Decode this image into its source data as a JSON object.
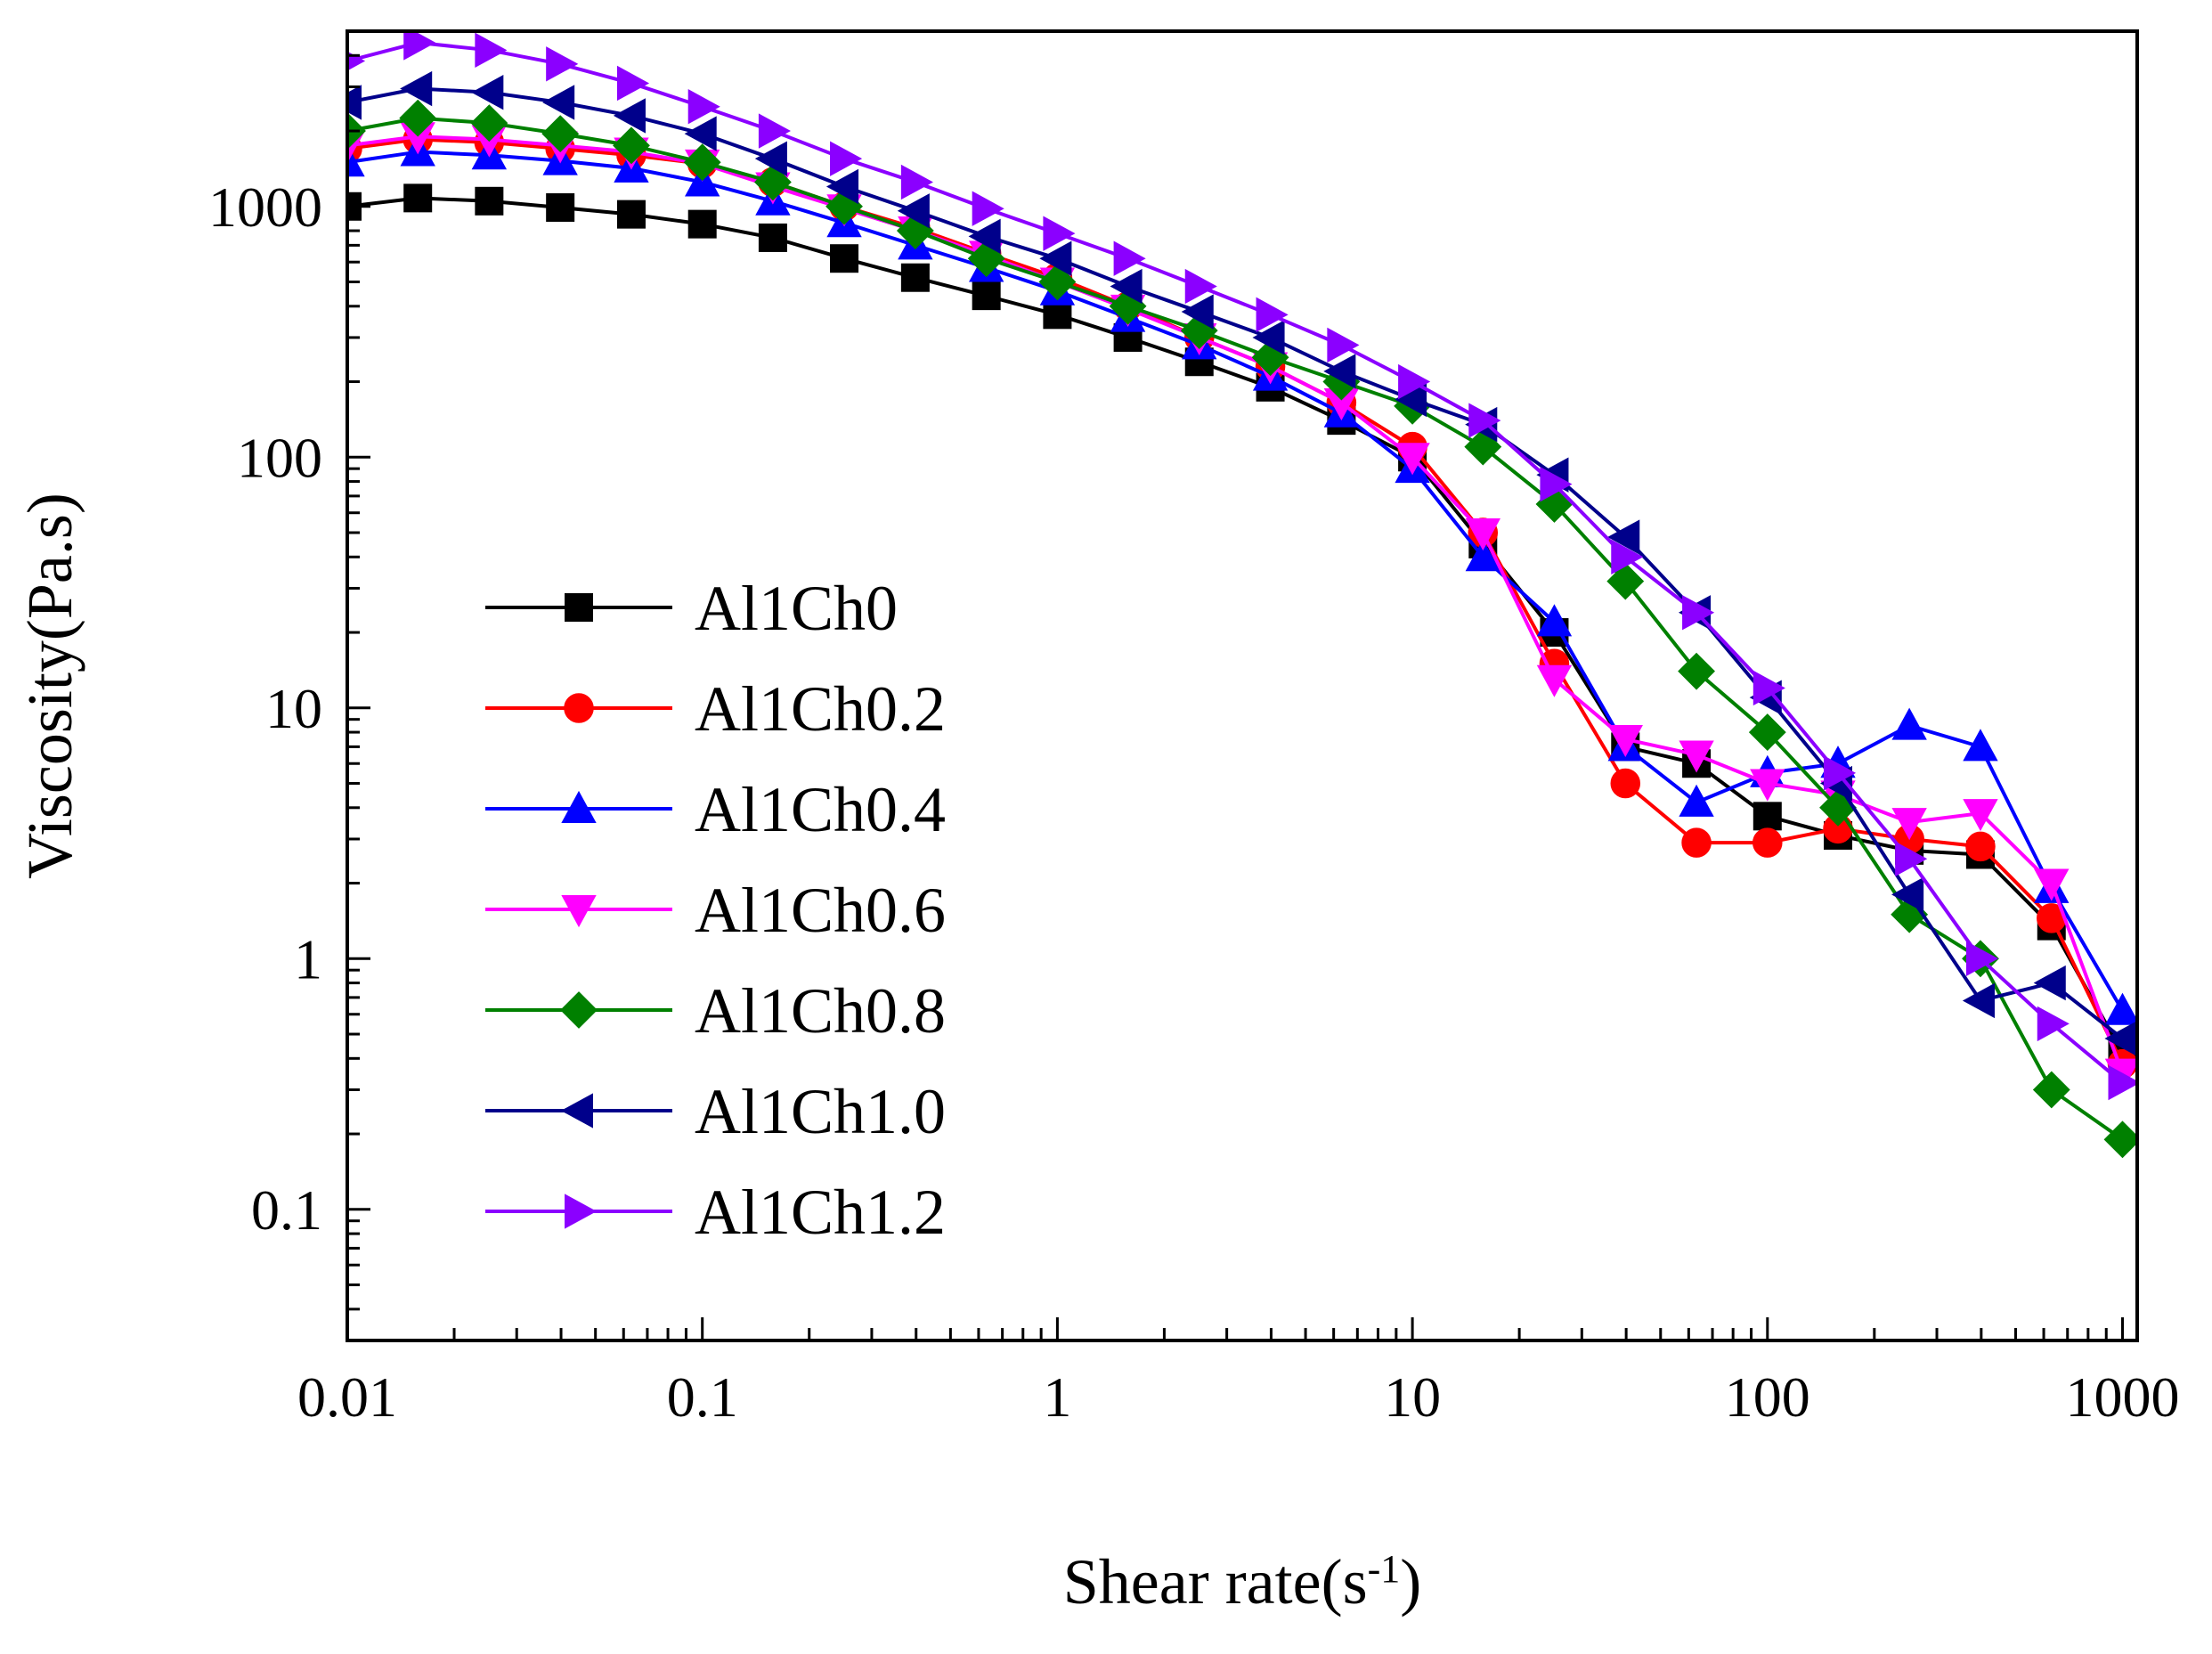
{
  "chart_data": {
    "type": "line",
    "xscale": "log",
    "yscale": "log",
    "xlabel": "Shear rate(s",
    "xlabel_sup": "-1",
    "xlabel_close": ")",
    "ylabel": "Viscosity(Pa.s)",
    "xlim": [
      0.01,
      1100
    ],
    "ylim": [
      0.03,
      5000
    ],
    "xticks": [
      0.01,
      0.1,
      1,
      10,
      100,
      1000
    ],
    "xtick_labels": [
      "0.01",
      "0.1",
      "1",
      "10",
      "100",
      "1000"
    ],
    "yticks": [
      0.1,
      1,
      10,
      100,
      1000
    ],
    "ytick_labels": [
      "0.1",
      "1",
      "10",
      "100",
      "1000"
    ],
    "grid": false,
    "legend_position": "lower-left",
    "x": [
      0.01,
      0.0158,
      0.0251,
      0.0398,
      0.0631,
      0.1,
      0.158,
      0.251,
      0.398,
      0.631,
      1,
      1.58,
      2.51,
      3.98,
      6.31,
      10,
      15.8,
      25.1,
      39.8,
      63.1,
      100,
      158,
      251,
      398,
      631,
      1000
    ],
    "series": [
      {
        "name": "Al1Ch0",
        "color": "#000000",
        "marker": "square",
        "values": [
          1000,
          1080,
          1050,
          990,
          930,
          850,
          750,
          620,
          520,
          440,
          370,
          300,
          240,
          190,
          140,
          100,
          45,
          20,
          7,
          6,
          3.7,
          3.1,
          2.7,
          2.6,
          1.35,
          0.42
        ]
      },
      {
        "name": "Al1Ch0.2",
        "color": "#ff0000",
        "marker": "circle",
        "values": [
          1700,
          1850,
          1800,
          1700,
          1600,
          1480,
          1250,
          1000,
          820,
          650,
          520,
          400,
          300,
          230,
          165,
          110,
          50,
          15,
          5,
          2.9,
          2.9,
          3.3,
          3.0,
          2.8,
          1.45,
          0.38
        ]
      },
      {
        "name": "Al1Ch0.4",
        "color": "#0000ff",
        "marker": "triangle-up",
        "values": [
          1500,
          1650,
          1600,
          1520,
          1420,
          1250,
          1050,
          860,
          700,
          570,
          460,
          360,
          280,
          210,
          150,
          90,
          40,
          22,
          7,
          4.2,
          5.5,
          6.0,
          8.5,
          7.0,
          1.9,
          0.62
        ]
      },
      {
        "name": "Al1Ch0.6",
        "color": "#ff00ff",
        "marker": "triangle-down",
        "values": [
          1750,
          1900,
          1850,
          1750,
          1650,
          1480,
          1200,
          980,
          800,
          640,
          500,
          390,
          300,
          230,
          165,
          100,
          50,
          13,
          7.5,
          6.5,
          5.0,
          4.5,
          3.5,
          3.8,
          2.0,
          0.35
        ]
      },
      {
        "name": "Al1Ch0.8",
        "color": "#008000",
        "marker": "diamond",
        "values": [
          2000,
          2250,
          2150,
          1950,
          1750,
          1500,
          1250,
          1000,
          800,
          620,
          500,
          400,
          320,
          250,
          200,
          160,
          110,
          65,
          32,
          14,
          8,
          4.0,
          1.5,
          1.0,
          0.3,
          0.19
        ]
      },
      {
        "name": "Al1Ch1.0",
        "color": "#00008b",
        "marker": "triangle-left",
        "values": [
          2600,
          2950,
          2850,
          2600,
          2300,
          1950,
          1550,
          1200,
          960,
          760,
          620,
          480,
          380,
          300,
          220,
          170,
          135,
          85,
          48,
          24,
          11,
          5.0,
          1.8,
          0.68,
          0.8,
          0.48
        ]
      },
      {
        "name": "Al1Ch1.2",
        "color": "#8b00ff",
        "marker": "triangle-right",
        "values": [
          3800,
          4500,
          4200,
          3700,
          3100,
          2500,
          2000,
          1550,
          1250,
          980,
          780,
          620,
          480,
          370,
          280,
          200,
          140,
          78,
          40,
          24,
          12,
          5.5,
          2.5,
          1.0,
          0.55,
          0.32
        ]
      }
    ]
  }
}
